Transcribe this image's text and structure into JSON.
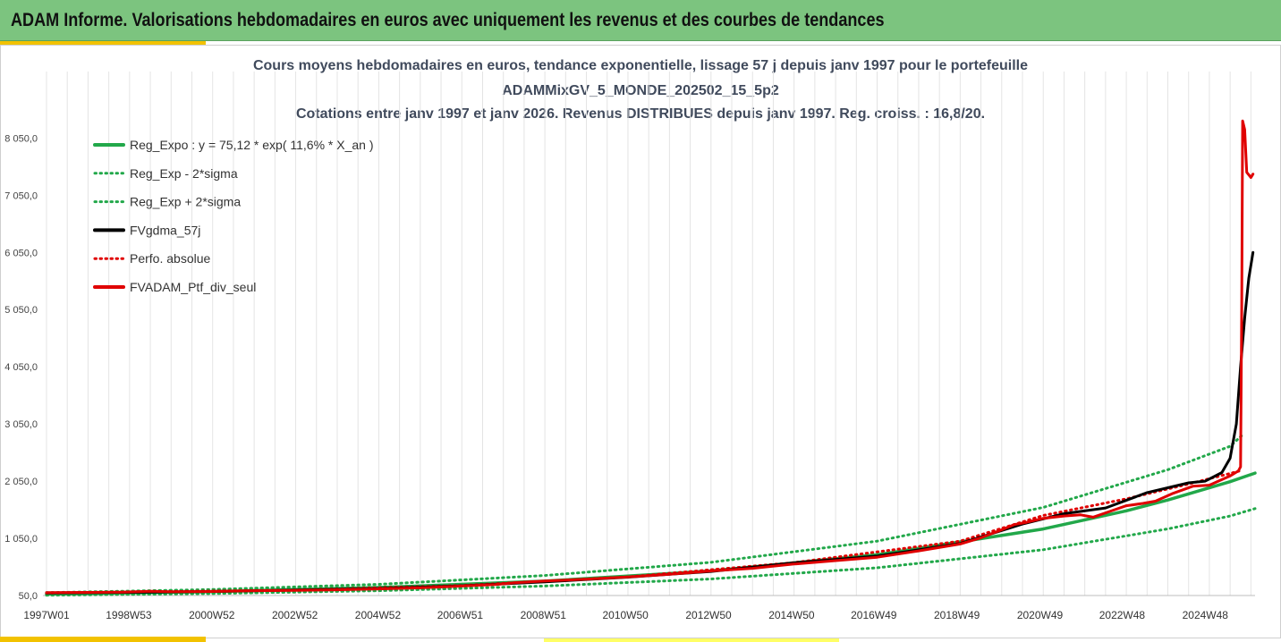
{
  "banner": {
    "title": "ADAM Informe. Valorisations hebdomadaires en euros avec uniquement les revenus et des courbes de tendances"
  },
  "chart_data": {
    "type": "line",
    "title_lines": [
      "Cours moyens hebdomadaires  en euros, tendance exponentielle, lissage 57 j depuis janv 1997 pour le portefeuille",
      "ADAMMixGV_5_MONDE_202502_15_5p2",
      "Cotations entre janv 1997 et janv 2026. Revenus DISTRIBUES depuis janv 1997. Reg. croiss. : 16,8/20."
    ],
    "xlabel": "",
    "ylabel": "",
    "x_tick_labels": [
      "1997W01",
      "1998W53",
      "2000W52",
      "2002W52",
      "2004W52",
      "2006W51",
      "2008W51",
      "2010W50",
      "2012W50",
      "2014W50",
      "2016W49",
      "2018W49",
      "2020W49",
      "2022W48",
      "2024W48"
    ],
    "x_tick_years": [
      1997.0,
      1998.98,
      2000.98,
      2002.98,
      2004.98,
      2006.96,
      2008.96,
      2010.94,
      2012.94,
      2014.94,
      2016.92,
      2018.92,
      2020.92,
      2022.9,
      2024.9
    ],
    "xlim": [
      1997.0,
      2026.1
    ],
    "y_tick_labels": [
      "50,0",
      "1 050,0",
      "2 050,0",
      "3 050,0",
      "4 050,0",
      "5 050,0",
      "6 050,0",
      "7 050,0",
      "8 050,0"
    ],
    "y_tick_values": [
      50,
      1050,
      2050,
      3050,
      4050,
      5050,
      6050,
      7050,
      8050
    ],
    "ylim": [
      50,
      8900
    ],
    "grid": "vertical",
    "legend_position": "top-left",
    "series": [
      {
        "name": "Reg_Expo : y = 75,12 * exp( 11,6% *  X_an )",
        "color": "#22a84a",
        "style": "solid",
        "points": [
          [
            1997,
            75
          ],
          [
            2001,
            119
          ],
          [
            2005,
            190
          ],
          [
            2009,
            302
          ],
          [
            2013,
            480
          ],
          [
            2017,
            763
          ],
          [
            2021,
            1214
          ],
          [
            2023,
            1530
          ],
          [
            2024,
            1720
          ],
          [
            2025.5,
            2040
          ],
          [
            2026.1,
            2190
          ]
        ]
      },
      {
        "name": "Reg_Exp - 2*sigma",
        "color": "#22a84a",
        "style": "dotted",
        "points": [
          [
            1997,
            55
          ],
          [
            2001,
            85
          ],
          [
            2005,
            135
          ],
          [
            2009,
            215
          ],
          [
            2013,
            340
          ],
          [
            2017,
            535
          ],
          [
            2021,
            850
          ],
          [
            2024,
            1215
          ],
          [
            2025.5,
            1440
          ],
          [
            2026.1,
            1570
          ]
        ]
      },
      {
        "name": "Reg_Exp + 2*sigma",
        "color": "#22a84a",
        "style": "dotted",
        "points": [
          [
            1997,
            100
          ],
          [
            2001,
            155
          ],
          [
            2005,
            245
          ],
          [
            2009,
            400
          ],
          [
            2013,
            630
          ],
          [
            2017,
            1000
          ],
          [
            2021,
            1590
          ],
          [
            2024,
            2250
          ],
          [
            2025.5,
            2660
          ],
          [
            2025.8,
            2860
          ]
        ]
      },
      {
        "name": "FVgdma_57j",
        "color": "#000000",
        "style": "solid",
        "points": [
          [
            1997,
            95
          ],
          [
            1999,
            105
          ],
          [
            2001,
            120
          ],
          [
            2003,
            145
          ],
          [
            2005,
            170
          ],
          [
            2007,
            220
          ],
          [
            2009,
            290
          ],
          [
            2011,
            370
          ],
          [
            2013,
            470
          ],
          [
            2015,
            620
          ],
          [
            2017,
            740
          ],
          [
            2019,
            960
          ],
          [
            2020.5,
            1300
          ],
          [
            2021.5,
            1480
          ],
          [
            2022.5,
            1580
          ],
          [
            2023.5,
            1850
          ],
          [
            2024.5,
            2020
          ],
          [
            2024.9,
            2050
          ],
          [
            2025.3,
            2200
          ],
          [
            2025.5,
            2450
          ],
          [
            2025.65,
            3050
          ],
          [
            2025.75,
            4050
          ],
          [
            2025.85,
            4900
          ],
          [
            2025.95,
            5600
          ],
          [
            2026.05,
            6050
          ]
        ]
      },
      {
        "name": "Perfo. absolue",
        "color": "#e00000",
        "style": "dotted",
        "points": [
          [
            1997,
            90
          ],
          [
            1999,
            110
          ],
          [
            2003,
            145
          ],
          [
            2007,
            225
          ],
          [
            2011,
            375
          ],
          [
            2015,
            625
          ],
          [
            2019,
            1000
          ],
          [
            2021,
            1450
          ],
          [
            2023,
            1740
          ],
          [
            2024.5,
            2000
          ],
          [
            2025.8,
            2240
          ]
        ]
      },
      {
        "name": "FVADAM_Ptf_div_seul",
        "color": "#e00000",
        "style": "solid",
        "points": [
          [
            1997,
            100
          ],
          [
            1998,
            105
          ],
          [
            1998.8,
            110
          ],
          [
            1999.5,
            125
          ],
          [
            2000,
            115
          ],
          [
            2001,
            120
          ],
          [
            2002,
            135
          ],
          [
            2003,
            140
          ],
          [
            2004,
            150
          ],
          [
            2005,
            165
          ],
          [
            2006,
            185
          ],
          [
            2007,
            215
          ],
          [
            2007.8,
            240
          ],
          [
            2008.3,
            275
          ],
          [
            2009,
            305
          ],
          [
            2010,
            335
          ],
          [
            2011,
            375
          ],
          [
            2012,
            420
          ],
          [
            2013,
            480
          ],
          [
            2014,
            525
          ],
          [
            2015,
            600
          ],
          [
            2016,
            660
          ],
          [
            2017,
            720
          ],
          [
            2018,
            830
          ],
          [
            2019,
            950
          ],
          [
            2019.5,
            1060
          ],
          [
            2020,
            1200
          ],
          [
            2020.3,
            1290
          ],
          [
            2020.6,
            1330
          ],
          [
            2021,
            1400
          ],
          [
            2021.5,
            1440
          ],
          [
            2021.9,
            1460
          ],
          [
            2022.2,
            1420
          ],
          [
            2022.6,
            1520
          ],
          [
            2023,
            1620
          ],
          [
            2023.4,
            1660
          ],
          [
            2023.7,
            1700
          ],
          [
            2024.1,
            1830
          ],
          [
            2024.6,
            1960
          ],
          [
            2025,
            1980
          ],
          [
            2025.5,
            2140
          ],
          [
            2025.7,
            2230
          ],
          [
            2025.75,
            2300
          ],
          [
            2025.78,
            5100
          ],
          [
            2025.8,
            8350
          ],
          [
            2025.85,
            8200
          ],
          [
            2025.9,
            7450
          ],
          [
            2026.0,
            7360
          ],
          [
            2026.05,
            7420
          ]
        ]
      }
    ]
  }
}
